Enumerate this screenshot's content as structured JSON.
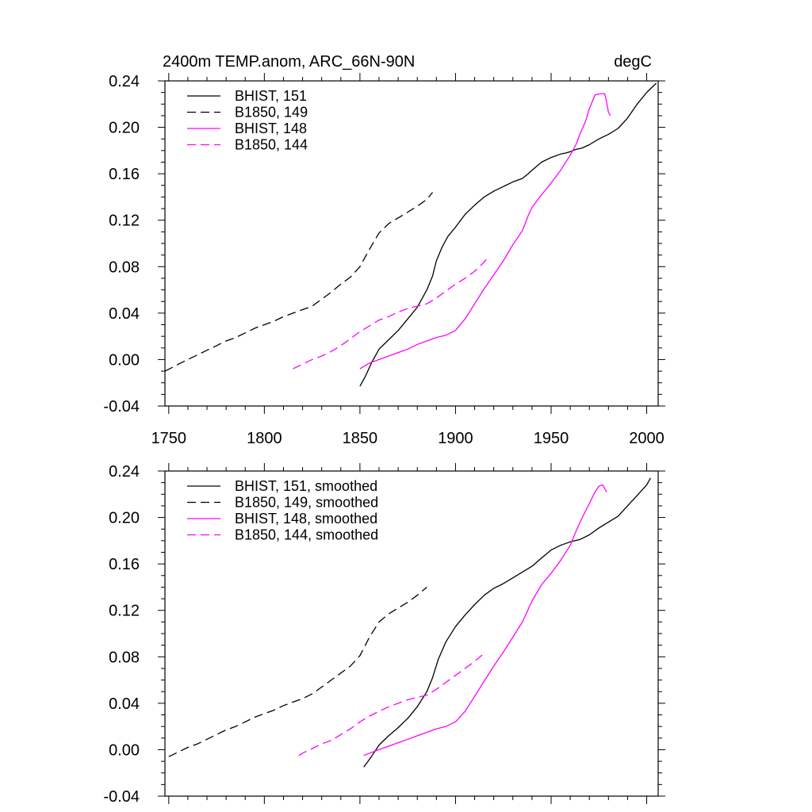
{
  "chart_data": [
    {
      "type": "line",
      "title": "2400m TEMP.anom, ARC_66N-90N",
      "units": "degC",
      "xlim": [
        1748,
        2006
      ],
      "ylim": [
        -0.04,
        0.24
      ],
      "xticks": [
        1750,
        1800,
        1850,
        1900,
        1950,
        2000
      ],
      "yticks": [
        "-0.04",
        "0.00",
        "0.04",
        "0.08",
        "0.12",
        "0.16",
        "0.20",
        "0.24"
      ],
      "xtick_labels_shown": true,
      "legend_position": "top-left",
      "series": [
        {
          "name": "BHIST, 151",
          "color": "#000000",
          "dash": "solid",
          "x": [
            1850,
            1853,
            1856,
            1860,
            1865,
            1870,
            1875,
            1880,
            1885,
            1888,
            1890,
            1893,
            1896,
            1900,
            1905,
            1910,
            1915,
            1920,
            1925,
            1930,
            1935,
            1938,
            1940,
            1945,
            1950,
            1955,
            1958,
            1960,
            1963,
            1966,
            1970,
            1975,
            1980,
            1985,
            1990,
            1995,
            2000,
            2005
          ],
          "y": [
            -0.023,
            -0.014,
            -0.003,
            0.009,
            0.017,
            0.025,
            0.035,
            0.045,
            0.06,
            0.072,
            0.085,
            0.097,
            0.106,
            0.114,
            0.125,
            0.133,
            0.14,
            0.145,
            0.149,
            0.153,
            0.156,
            0.16,
            0.163,
            0.17,
            0.174,
            0.177,
            0.178,
            0.179,
            0.181,
            0.182,
            0.185,
            0.19,
            0.194,
            0.199,
            0.208,
            0.22,
            0.23,
            0.238
          ]
        },
        {
          "name": "B1850, 149",
          "color": "#000000",
          "dash": "dashed",
          "x": [
            1748,
            1755,
            1760,
            1765,
            1770,
            1775,
            1780,
            1785,
            1790,
            1795,
            1800,
            1805,
            1810,
            1815,
            1820,
            1825,
            1830,
            1835,
            1840,
            1845,
            1850,
            1855,
            1860,
            1865,
            1870,
            1875,
            1880,
            1885,
            1888
          ],
          "y": [
            -0.01,
            -0.004,
            0.0,
            0.004,
            0.008,
            0.012,
            0.016,
            0.019,
            0.023,
            0.027,
            0.03,
            0.033,
            0.037,
            0.04,
            0.043,
            0.046,
            0.052,
            0.058,
            0.065,
            0.071,
            0.08,
            0.095,
            0.109,
            0.117,
            0.122,
            0.127,
            0.132,
            0.138,
            0.144
          ]
        },
        {
          "name": "BHIST, 148",
          "color": "#ff00ff",
          "dash": "solid",
          "x": [
            1850,
            1855,
            1860,
            1865,
            1870,
            1875,
            1880,
            1885,
            1890,
            1895,
            1900,
            1905,
            1910,
            1915,
            1920,
            1925,
            1930,
            1935,
            1938,
            1940,
            1945,
            1950,
            1955,
            1960,
            1963,
            1965,
            1968,
            1970,
            1973,
            1976,
            1978,
            1979,
            1980,
            1981
          ],
          "y": [
            -0.008,
            -0.003,
            0.0,
            0.003,
            0.006,
            0.009,
            0.013,
            0.016,
            0.019,
            0.021,
            0.025,
            0.035,
            0.048,
            0.061,
            0.073,
            0.085,
            0.099,
            0.111,
            0.124,
            0.131,
            0.142,
            0.152,
            0.163,
            0.176,
            0.185,
            0.194,
            0.205,
            0.216,
            0.228,
            0.229,
            0.229,
            0.222,
            0.213,
            0.21
          ]
        },
        {
          "name": "B1850, 144",
          "color": "#ff00ff",
          "dash": "dashed",
          "x": [
            1815,
            1820,
            1825,
            1830,
            1835,
            1840,
            1845,
            1850,
            1855,
            1860,
            1865,
            1870,
            1875,
            1880,
            1885,
            1890,
            1895,
            1900,
            1905,
            1910,
            1915,
            1917
          ],
          "y": [
            -0.008,
            -0.004,
            0.0,
            0.003,
            0.007,
            0.012,
            0.018,
            0.024,
            0.029,
            0.034,
            0.037,
            0.041,
            0.044,
            0.046,
            0.048,
            0.053,
            0.059,
            0.065,
            0.07,
            0.076,
            0.084,
            0.088
          ]
        }
      ]
    },
    {
      "type": "line",
      "title": "",
      "xlim": [
        1748,
        2006
      ],
      "ylim": [
        -0.04,
        0.24
      ],
      "xticks": [
        1750,
        1800,
        1850,
        1900,
        1950,
        2000
      ],
      "yticks": [
        "-0.04",
        "0.00",
        "0.04",
        "0.08",
        "0.12",
        "0.16",
        "0.20",
        "0.24"
      ],
      "xtick_labels_shown": false,
      "legend_position": "top-left",
      "series": [
        {
          "name": "BHIST, 151, smoothed",
          "color": "#000000",
          "dash": "solid",
          "x": [
            1852,
            1856,
            1860,
            1865,
            1870,
            1875,
            1880,
            1885,
            1888,
            1891,
            1895,
            1900,
            1905,
            1910,
            1915,
            1920,
            1925,
            1930,
            1935,
            1940,
            1945,
            1950,
            1955,
            1960,
            1965,
            1970,
            1975,
            1980,
            1985,
            1990,
            1995,
            2000,
            2002
          ],
          "y": [
            -0.015,
            -0.006,
            0.004,
            0.012,
            0.019,
            0.027,
            0.037,
            0.05,
            0.062,
            0.078,
            0.093,
            0.106,
            0.116,
            0.125,
            0.133,
            0.139,
            0.143,
            0.148,
            0.153,
            0.158,
            0.165,
            0.172,
            0.176,
            0.179,
            0.181,
            0.185,
            0.191,
            0.196,
            0.201,
            0.21,
            0.219,
            0.228,
            0.234
          ]
        },
        {
          "name": "B1850, 149, smoothed",
          "color": "#000000",
          "dash": "dashed",
          "x": [
            1750,
            1755,
            1760,
            1765,
            1770,
            1775,
            1780,
            1785,
            1790,
            1795,
            1800,
            1805,
            1810,
            1815,
            1820,
            1825,
            1830,
            1835,
            1840,
            1845,
            1850,
            1855,
            1860,
            1865,
            1870,
            1875,
            1880,
            1885
          ],
          "y": [
            -0.006,
            -0.002,
            0.002,
            0.005,
            0.009,
            0.013,
            0.017,
            0.02,
            0.024,
            0.028,
            0.031,
            0.034,
            0.038,
            0.041,
            0.044,
            0.048,
            0.054,
            0.06,
            0.066,
            0.072,
            0.081,
            0.097,
            0.11,
            0.117,
            0.122,
            0.127,
            0.133,
            0.14
          ]
        },
        {
          "name": "BHIST, 148, smoothed",
          "color": "#ff00ff",
          "dash": "solid",
          "x": [
            1852,
            1855,
            1860,
            1865,
            1870,
            1875,
            1880,
            1885,
            1890,
            1895,
            1900,
            1905,
            1910,
            1915,
            1920,
            1925,
            1930,
            1935,
            1940,
            1945,
            1950,
            1955,
            1960,
            1963,
            1966,
            1970,
            1973,
            1975,
            1977,
            1979
          ],
          "y": [
            -0.005,
            -0.003,
            0.0,
            0.003,
            0.006,
            0.009,
            0.012,
            0.015,
            0.018,
            0.02,
            0.024,
            0.033,
            0.046,
            0.059,
            0.072,
            0.084,
            0.097,
            0.11,
            0.128,
            0.142,
            0.152,
            0.163,
            0.176,
            0.188,
            0.199,
            0.212,
            0.222,
            0.227,
            0.228,
            0.222
          ]
        },
        {
          "name": "B1850, 144, smoothed",
          "color": "#ff00ff",
          "dash": "dashed",
          "x": [
            1818,
            1820,
            1825,
            1830,
            1835,
            1840,
            1845,
            1850,
            1855,
            1860,
            1865,
            1870,
            1875,
            1880,
            1885,
            1890,
            1895,
            1900,
            1905,
            1910,
            1915
          ],
          "y": [
            -0.005,
            -0.003,
            0.001,
            0.005,
            0.008,
            0.013,
            0.018,
            0.024,
            0.029,
            0.033,
            0.037,
            0.04,
            0.043,
            0.045,
            0.047,
            0.052,
            0.058,
            0.064,
            0.07,
            0.076,
            0.083
          ]
        }
      ]
    }
  ]
}
